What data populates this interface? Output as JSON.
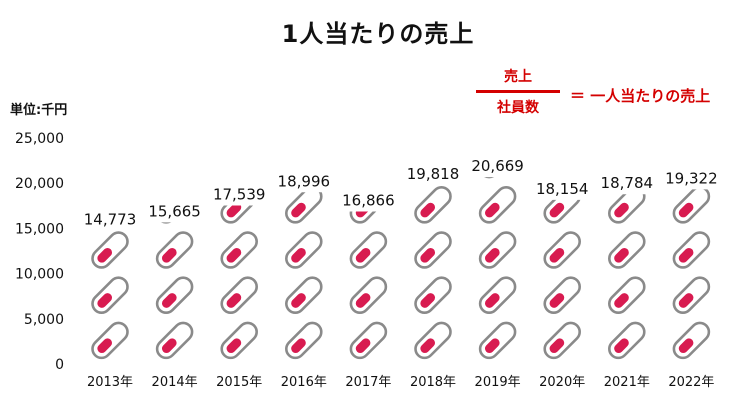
{
  "chart_data": {
    "type": "bar",
    "style": "pictograph",
    "title": "1人当たりの売上",
    "unit_label": "単位:千円",
    "categories": [
      "2013年",
      "2014年",
      "2015年",
      "2016年",
      "2017年",
      "2018年",
      "2019年",
      "2020年",
      "2021年",
      "2022年"
    ],
    "values": [
      14773,
      15665,
      17539,
      18996,
      16866,
      19818,
      20669,
      18154,
      18784,
      19322
    ],
    "value_labels": [
      "14,773",
      "15,665",
      "17,539",
      "18,996",
      "16,866",
      "19,818",
      "20,669",
      "18,154",
      "18,784",
      "19,322"
    ],
    "yticks": [
      "0",
      "5,000",
      "10,000",
      "15,000",
      "20,000",
      "25,000"
    ],
    "ylim": [
      0,
      25000
    ],
    "icon_value": 5000,
    "icon": "capsule-icon",
    "grid": false,
    "legend": "none",
    "colors": {
      "capsule_fill": "#d81b50",
      "capsule_outline": "#8a8a8a",
      "formula": "#d40000"
    }
  },
  "formula": {
    "numerator": "売上",
    "denominator": "社員数",
    "result": "＝ 一人当たりの売上"
  }
}
